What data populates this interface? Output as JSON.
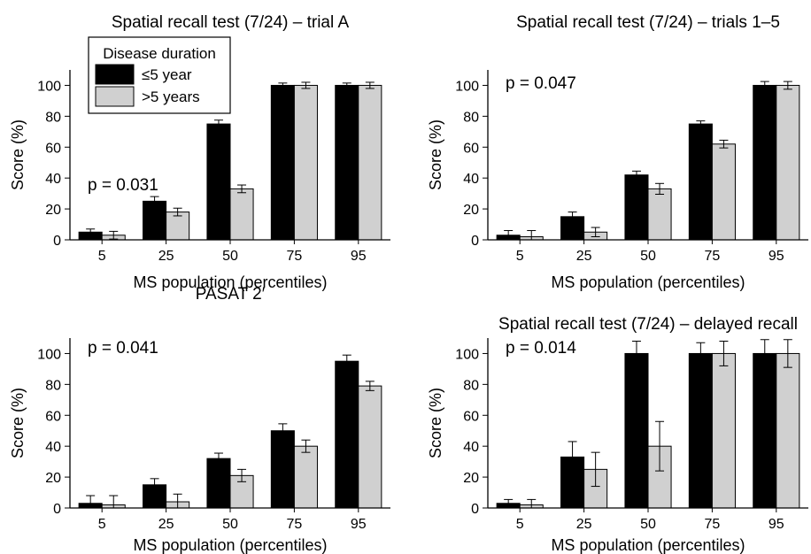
{
  "figure": {
    "legend": {
      "title": "Disease duration",
      "entries": [
        {
          "label": "≤5 year",
          "color": "#000000"
        },
        {
          "label": ">5 years",
          "color": "#d0d0d0"
        }
      ]
    }
  },
  "chart_data": [
    {
      "type": "bar",
      "title": "Spatial recall test (7/24) – trial A",
      "xlabel": "MS population (percentiles)",
      "ylabel": "Score (%)",
      "ylim": [
        0,
        110
      ],
      "yticks": [
        0,
        20,
        40,
        60,
        80,
        100
      ],
      "categories": [
        "5",
        "25",
        "50",
        "75",
        "95"
      ],
      "annotation": "p = 0.031",
      "series": [
        {
          "name": "≤5 year",
          "color": "#000000",
          "values": [
            5,
            25,
            75,
            100,
            100
          ],
          "errors": [
            2,
            3,
            2.5,
            1.5,
            1.5
          ]
        },
        {
          "name": ">5 years",
          "color": "#d0d0d0",
          "values": [
            3,
            18,
            33,
            100,
            100
          ],
          "errors": [
            2.5,
            2.5,
            2.5,
            2,
            2
          ]
        }
      ]
    },
    {
      "type": "bar",
      "title": "Spatial recall test (7/24) – trials 1–5",
      "xlabel": "MS population (percentiles)",
      "ylabel": "Score (%)",
      "ylim": [
        0,
        110
      ],
      "yticks": [
        0,
        20,
        40,
        60,
        80,
        100
      ],
      "categories": [
        "5",
        "25",
        "50",
        "75",
        "95"
      ],
      "annotation": "p = 0.047",
      "series": [
        {
          "name": "≤5 year",
          "color": "#000000",
          "values": [
            3,
            15,
            42,
            75,
            100
          ],
          "errors": [
            3,
            3,
            2.5,
            2,
            2.5
          ]
        },
        {
          "name": ">5 years",
          "color": "#d0d0d0",
          "values": [
            2,
            5,
            33,
            62,
            100
          ],
          "errors": [
            4,
            3,
            3.5,
            2.5,
            2.5
          ]
        }
      ]
    },
    {
      "type": "bar",
      "title": "PASAT 2′",
      "xlabel": "MS population (percentiles)",
      "ylabel": "Score (%)",
      "ylim": [
        0,
        110
      ],
      "yticks": [
        0,
        20,
        40,
        60,
        80,
        100
      ],
      "categories": [
        "5",
        "25",
        "50",
        "75",
        "95"
      ],
      "annotation": "p = 0.041",
      "series": [
        {
          "name": "≤5 year",
          "color": "#000000",
          "values": [
            3,
            15,
            32,
            50,
            95
          ],
          "errors": [
            5,
            4,
            3.5,
            4.5,
            4
          ]
        },
        {
          "name": ">5 years",
          "color": "#d0d0d0",
          "values": [
            2,
            4,
            21,
            40,
            79
          ],
          "errors": [
            6,
            5,
            4,
            4,
            3
          ]
        }
      ]
    },
    {
      "type": "bar",
      "title": "Spatial recall test (7/24) – delayed recall",
      "xlabel": "MS population (percentiles)",
      "ylabel": "Score (%)",
      "ylim": [
        0,
        110
      ],
      "yticks": [
        0,
        20,
        40,
        60,
        80,
        100
      ],
      "categories": [
        "5",
        "25",
        "50",
        "75",
        "95"
      ],
      "annotation": "p = 0.014",
      "series": [
        {
          "name": "≤5 year",
          "color": "#000000",
          "values": [
            3,
            33,
            100,
            100,
            100
          ],
          "errors": [
            2.5,
            10,
            8,
            7,
            9
          ]
        },
        {
          "name": ">5 years",
          "color": "#d0d0d0",
          "values": [
            2,
            25,
            40,
            100,
            100
          ],
          "errors": [
            3.5,
            11,
            16,
            8,
            9
          ]
        }
      ]
    }
  ]
}
